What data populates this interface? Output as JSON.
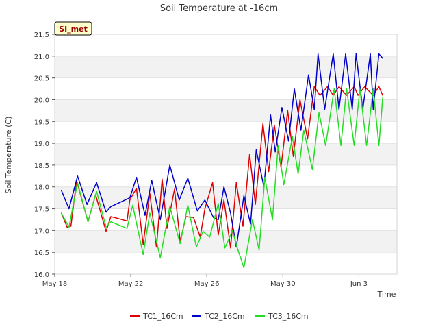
{
  "chart_data": {
    "type": "line",
    "title": "Soil Temperature at -16cm",
    "xlabel": "Time",
    "ylabel": "Soil Temperature (C)",
    "ylim": [
      16.0,
      21.5
    ],
    "xlim": [
      0,
      18
    ],
    "x_unit": "days since May 18",
    "grid": true,
    "yticks": [
      16.0,
      16.5,
      17.0,
      17.5,
      18.0,
      18.5,
      19.0,
      19.5,
      20.0,
      20.5,
      21.0,
      21.5
    ],
    "ytick_labels": [
      "16.0",
      "16.5",
      "17.0",
      "17.5",
      "18.0",
      "18.5",
      "19.0",
      "19.5",
      "20.0",
      "20.5",
      "21.0",
      "21.5"
    ],
    "xticks": [
      0,
      4,
      8,
      12,
      16
    ],
    "xtick_labels": [
      "May 18",
      "May 22",
      "May 26",
      "May 30",
      "Jun 3"
    ],
    "site_badge": "SI_met",
    "legend_position": "bottom-center",
    "series": [
      {
        "name": "TC1_16Cm",
        "color": "#dd0000",
        "x": [
          0.35,
          0.65,
          0.85,
          1.15,
          1.75,
          2.15,
          2.7,
          2.95,
          3.15,
          3.8,
          3.95,
          4.3,
          4.65,
          5.0,
          5.35,
          5.65,
          5.9,
          6.3,
          6.6,
          6.9,
          7.3,
          7.65,
          7.9,
          8.3,
          8.6,
          8.9,
          9.25,
          9.55,
          9.9,
          10.25,
          10.55,
          10.95,
          11.25,
          11.55,
          11.9,
          12.25,
          12.55,
          12.9,
          13.3,
          13.65,
          13.95,
          14.35,
          14.65,
          14.95,
          15.35,
          15.75,
          15.95,
          16.3,
          16.75,
          17.05,
          17.25
        ],
        "y": [
          17.4,
          17.08,
          17.1,
          18.15,
          17.2,
          17.82,
          16.98,
          17.32,
          17.3,
          17.22,
          17.7,
          17.97,
          16.68,
          17.85,
          16.62,
          18.18,
          17.05,
          17.95,
          16.75,
          17.32,
          17.3,
          16.85,
          17.5,
          18.1,
          16.9,
          17.7,
          16.6,
          18.1,
          17.1,
          18.75,
          17.6,
          19.45,
          18.35,
          19.42,
          18.45,
          19.75,
          18.7,
          20.0,
          19.1,
          20.3,
          20.1,
          20.3,
          20.1,
          20.3,
          20.1,
          20.3,
          20.1,
          20.3,
          20.1,
          20.3,
          20.1
        ]
      },
      {
        "name": "TC2_16Cm",
        "color": "#0000cc",
        "x": [
          0.35,
          0.75,
          1.2,
          1.7,
          2.2,
          2.7,
          2.95,
          3.95,
          4.3,
          4.75,
          5.1,
          5.55,
          6.05,
          6.55,
          7.0,
          7.5,
          7.9,
          8.35,
          8.6,
          8.9,
          9.25,
          9.55,
          9.95,
          10.3,
          10.6,
          11.0,
          11.35,
          11.6,
          11.95,
          12.3,
          12.6,
          12.95,
          13.35,
          13.65,
          13.85,
          14.2,
          14.65,
          14.95,
          15.3,
          15.65,
          15.85,
          16.2,
          16.6,
          16.75,
          17.05,
          17.25
        ],
        "y": [
          17.92,
          17.5,
          18.25,
          17.6,
          18.1,
          17.42,
          17.55,
          17.75,
          18.22,
          17.35,
          18.15,
          17.25,
          18.5,
          17.7,
          18.2,
          17.45,
          17.7,
          17.3,
          17.25,
          18.0,
          17.4,
          16.62,
          17.8,
          17.15,
          18.85,
          18.0,
          19.65,
          18.8,
          19.82,
          19.05,
          20.25,
          19.3,
          20.57,
          19.78,
          21.05,
          19.78,
          21.05,
          19.78,
          21.05,
          19.78,
          21.05,
          19.78,
          21.05,
          19.78,
          21.05,
          20.95
        ]
      },
      {
        "name": "TC3_16Cm",
        "color": "#22dd22",
        "x": [
          0.35,
          0.75,
          1.2,
          1.75,
          2.2,
          2.7,
          2.95,
          3.8,
          4.1,
          4.65,
          5.0,
          5.55,
          6.05,
          6.6,
          7.0,
          7.45,
          7.8,
          8.15,
          8.6,
          8.95,
          9.35,
          9.6,
          9.95,
          10.4,
          10.75,
          11.05,
          11.45,
          11.75,
          12.05,
          12.5,
          12.8,
          13.1,
          13.55,
          13.9,
          14.25,
          14.7,
          15.05,
          15.35,
          15.75,
          16.05,
          16.4,
          16.75,
          17.05,
          17.25
        ],
        "y": [
          17.4,
          17.08,
          18.1,
          17.2,
          17.9,
          17.08,
          17.2,
          17.05,
          17.58,
          16.45,
          17.4,
          16.38,
          17.55,
          16.7,
          17.58,
          16.62,
          16.98,
          16.85,
          17.62,
          16.6,
          17.0,
          16.6,
          16.15,
          17.25,
          16.55,
          18.22,
          17.25,
          18.95,
          18.05,
          19.15,
          18.3,
          19.3,
          18.4,
          19.7,
          18.95,
          20.25,
          18.95,
          20.25,
          18.95,
          20.25,
          18.95,
          20.25,
          18.95,
          20.05
        ]
      }
    ]
  }
}
